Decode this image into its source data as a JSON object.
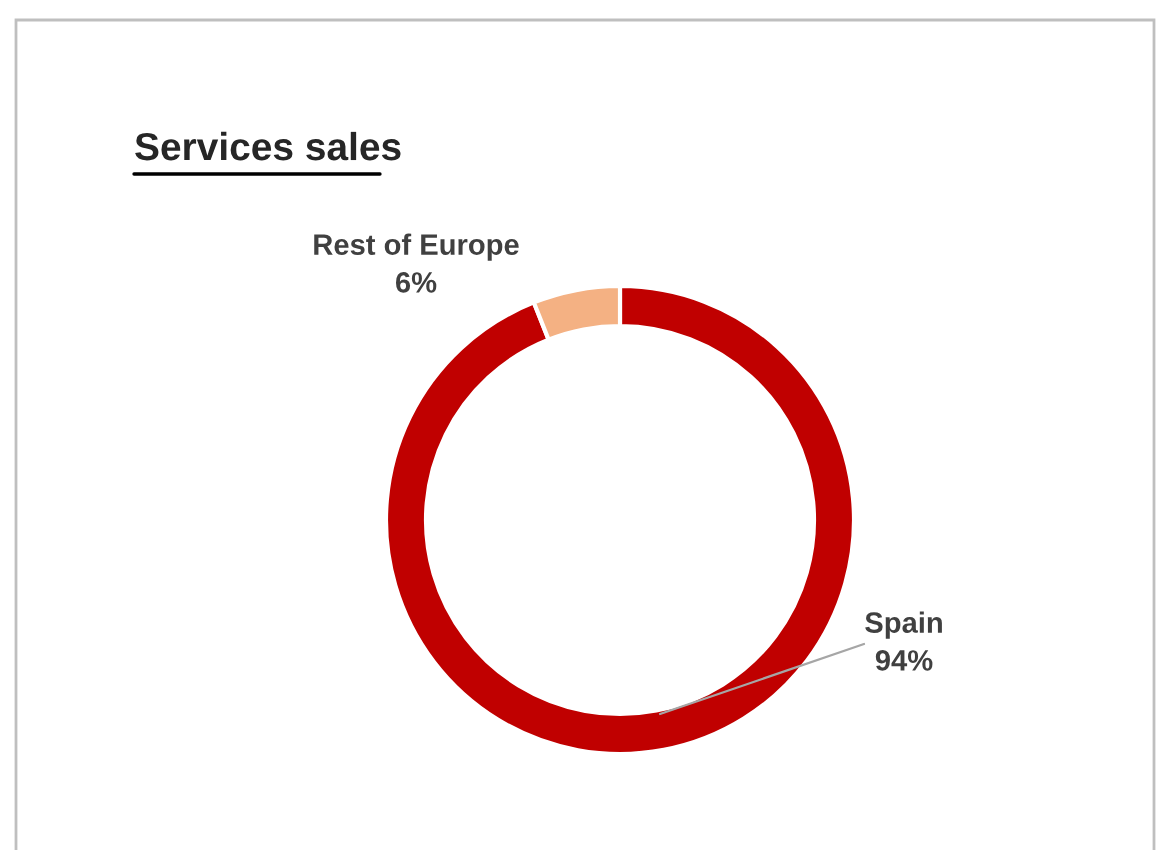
{
  "chart_data": {
    "type": "donut",
    "title": "Services sales",
    "categories": [
      "Spain",
      "Rest of Europe"
    ],
    "values": [
      94,
      6
    ],
    "colors": [
      "#c00000",
      "#f4b183"
    ],
    "value_labels": [
      "94%",
      "6%"
    ],
    "legend": false
  }
}
